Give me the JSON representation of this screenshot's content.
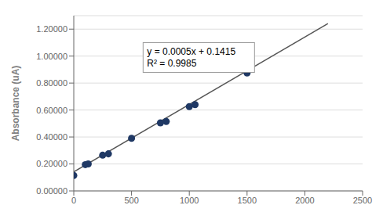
{
  "chart_data": {
    "type": "scatter",
    "ylabel": "Absorbance (uA)",
    "x": [
      0,
      100,
      125,
      250,
      300,
      500,
      750,
      800,
      1000,
      1050,
      1500
    ],
    "values": [
      0.115,
      0.195,
      0.2,
      0.265,
      0.275,
      0.39,
      0.505,
      0.515,
      0.625,
      0.64,
      0.875
    ],
    "color": "#1f3864",
    "marker": "circle",
    "series": [
      {
        "type": "line",
        "x": [
          -10,
          2200
        ],
        "values": [
          0.1365,
          1.2415
        ],
        "color": "#555555",
        "line_style": "solid"
      }
    ],
    "xlim": [
      0,
      2500
    ],
    "ylim": [
      0.0,
      1.3
    ],
    "xticks": [
      0,
      500,
      1000,
      1500,
      2000,
      2500
    ],
    "yticks": [
      {
        "value": 0.0,
        "label": "0.00000"
      },
      {
        "value": 0.2,
        "label": "0.20000"
      },
      {
        "value": 0.4,
        "label": "0.40000"
      },
      {
        "value": 0.6,
        "label": "0.60000"
      },
      {
        "value": 0.8,
        "label": "0.80000"
      },
      {
        "value": 1.0,
        "label": "1.00000"
      },
      {
        "value": 1.2,
        "label": "1.20000"
      }
    ],
    "grid": true,
    "annotations": [
      {
        "text": [
          "y = 0.0005x + 0.1415",
          "R² = 0.9985"
        ],
        "x": 600,
        "y": 1.1
      }
    ]
  }
}
